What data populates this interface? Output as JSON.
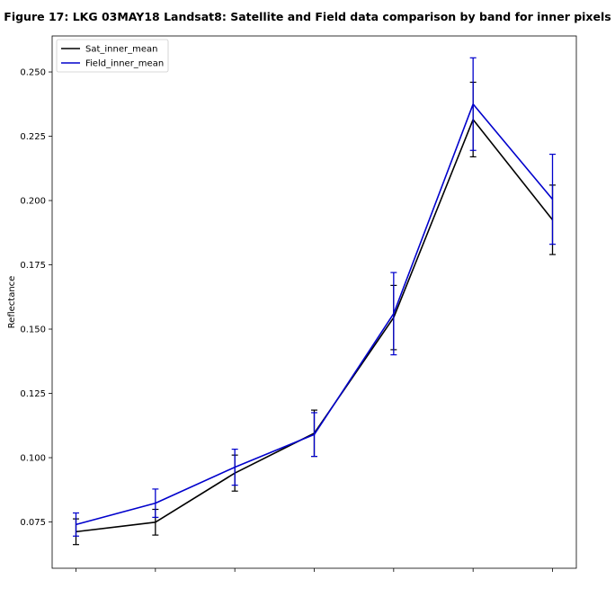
{
  "chart_data": {
    "type": "line",
    "title": "Figure 17: LKG 03MAY18  Landsat8: Satellite and Field data comparison by band for inner pixels",
    "xlabel": "",
    "ylabel": "Reflectance",
    "ylim": [
      0.057,
      0.264
    ],
    "xlim": [
      0.7,
      7.3
    ],
    "x": [
      1,
      2,
      3,
      4,
      5,
      6,
      7
    ],
    "yticks": [
      0.075,
      0.1,
      0.125,
      0.15,
      0.175,
      0.2,
      0.225,
      0.25
    ],
    "ytick_labels": [
      "0.075",
      "0.100",
      "0.125",
      "0.150",
      "0.175",
      "0.200",
      "0.225",
      "0.250"
    ],
    "grid": false,
    "legend_position": "upper left",
    "series": [
      {
        "name": "Sat_inner_mean",
        "color": "#000000",
        "values": [
          0.0712,
          0.0749,
          0.094,
          0.1095,
          0.1545,
          0.2315,
          0.1925
        ],
        "errors": [
          0.005,
          0.005,
          0.007,
          0.009,
          0.0125,
          0.0145,
          0.0135
        ]
      },
      {
        "name": "Field_inner_mean",
        "color": "#0000cc",
        "values": [
          0.074,
          0.0823,
          0.0963,
          0.109,
          0.156,
          0.2375,
          0.2005
        ],
        "errors": [
          0.0045,
          0.0055,
          0.007,
          0.0085,
          0.016,
          0.018,
          0.0175
        ]
      }
    ]
  }
}
